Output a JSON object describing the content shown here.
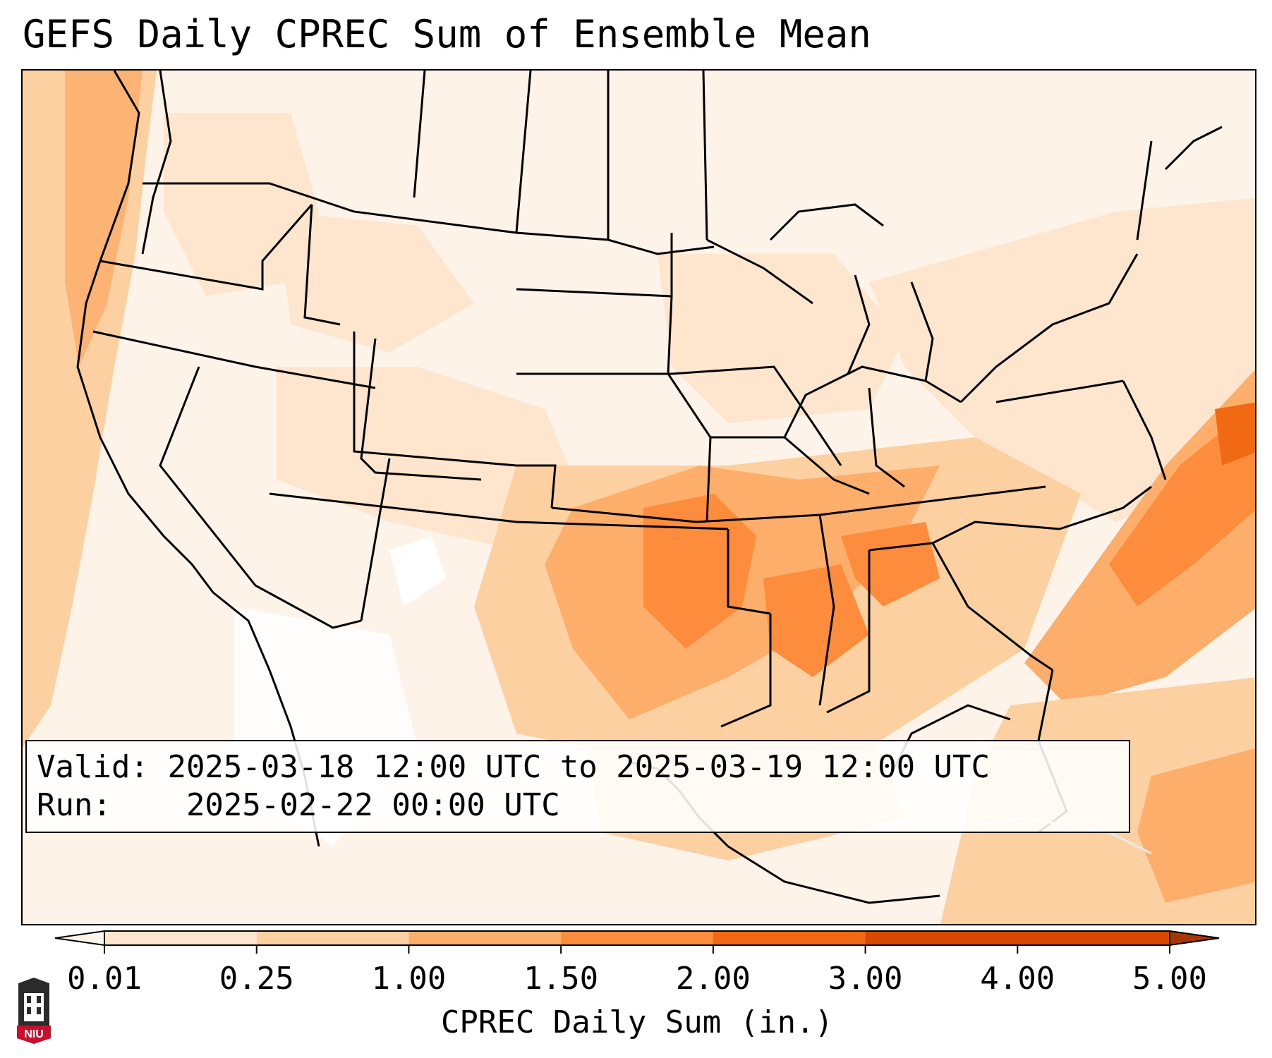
{
  "title": "GEFS Daily CPREC Sum of Ensemble Mean",
  "info": {
    "valid_label": "Valid:",
    "valid_value": "2025-03-18 12:00 UTC to 2025-03-19 12:00 UTC",
    "run_label": "Run:",
    "run_value": "2025-02-22 00:00 UTC"
  },
  "colorbar": {
    "label": "CPREC Daily Sum (in.)",
    "ticks": [
      "0.01",
      "0.25",
      "1.00",
      "1.50",
      "2.00",
      "3.00",
      "4.00",
      "5.00"
    ],
    "colors": [
      "#fff5eb",
      "#fee6ce",
      "#fdd0a2",
      "#fdae6b",
      "#fd8d3c",
      "#f16913",
      "#d94801",
      "#a63603"
    ],
    "extend": "both"
  },
  "logo": {
    "text": "NIU",
    "color": "#c8102e"
  }
}
